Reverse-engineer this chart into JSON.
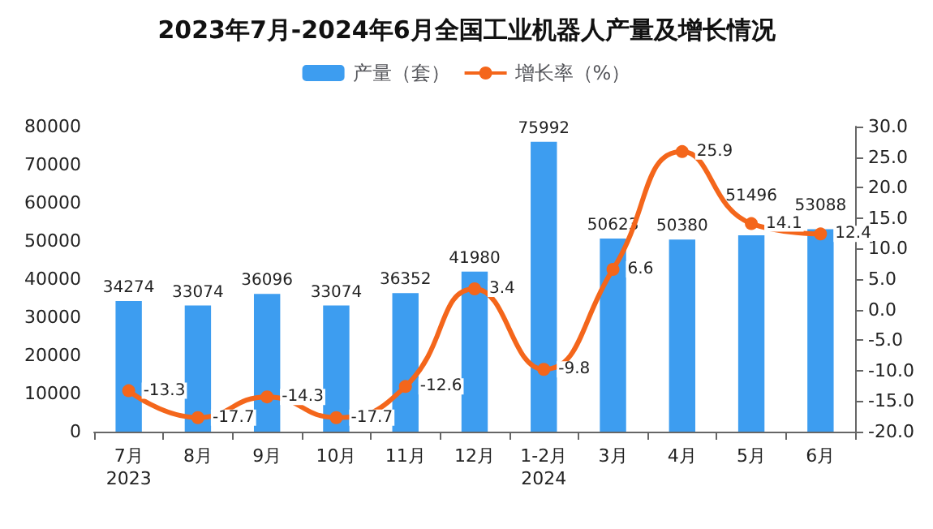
{
  "chart_data": {
    "type": "bar",
    "title": "2023年7月-2024年6月全国工业机器人产量及增长情况",
    "categories": [
      "7月\n2023",
      "8月",
      "9月",
      "10月",
      "11月",
      "12月",
      "1-2月\n2024",
      "3月",
      "4月",
      "5月",
      "6月"
    ],
    "series": [
      {
        "name": "产量（套）",
        "color": "#3d9df0",
        "values": [
          34274,
          33074,
          36096,
          33074,
          36352,
          41980,
          75992,
          50623,
          50380,
          51496,
          53088
        ]
      },
      {
        "name": "增长率（%）",
        "type": "line",
        "axis": "y2",
        "color": "#f4661b",
        "marker": "circle",
        "values": [
          -13.3,
          -17.7,
          -14.3,
          -17.7,
          -12.6,
          3.4,
          -9.8,
          6.6,
          25.9,
          14.1,
          12.4
        ]
      }
    ],
    "ylim": [
      0,
      80000
    ],
    "yticks": [
      0,
      10000,
      20000,
      30000,
      40000,
      50000,
      60000,
      70000,
      80000
    ],
    "y2lim": [
      -20,
      30
    ],
    "y2ticks": [
      {
        "value": -20,
        "label": "-20.0"
      },
      {
        "value": -15,
        "label": "-15.0"
      },
      {
        "value": -10,
        "label": "-10.0"
      },
      {
        "value": -5,
        "label": "-5.0"
      },
      {
        "value": 0,
        "label": "0.0"
      },
      {
        "value": 5,
        "label": "5.0"
      },
      {
        "value": 10,
        "label": "10.0"
      },
      {
        "value": 15,
        "label": "15.0"
      },
      {
        "value": 20,
        "label": "20.0"
      },
      {
        "value": 25,
        "label": "25.0"
      },
      {
        "value": 30,
        "label": "30.0"
      }
    ],
    "data_labels": true,
    "legend": "top",
    "grid": false
  }
}
